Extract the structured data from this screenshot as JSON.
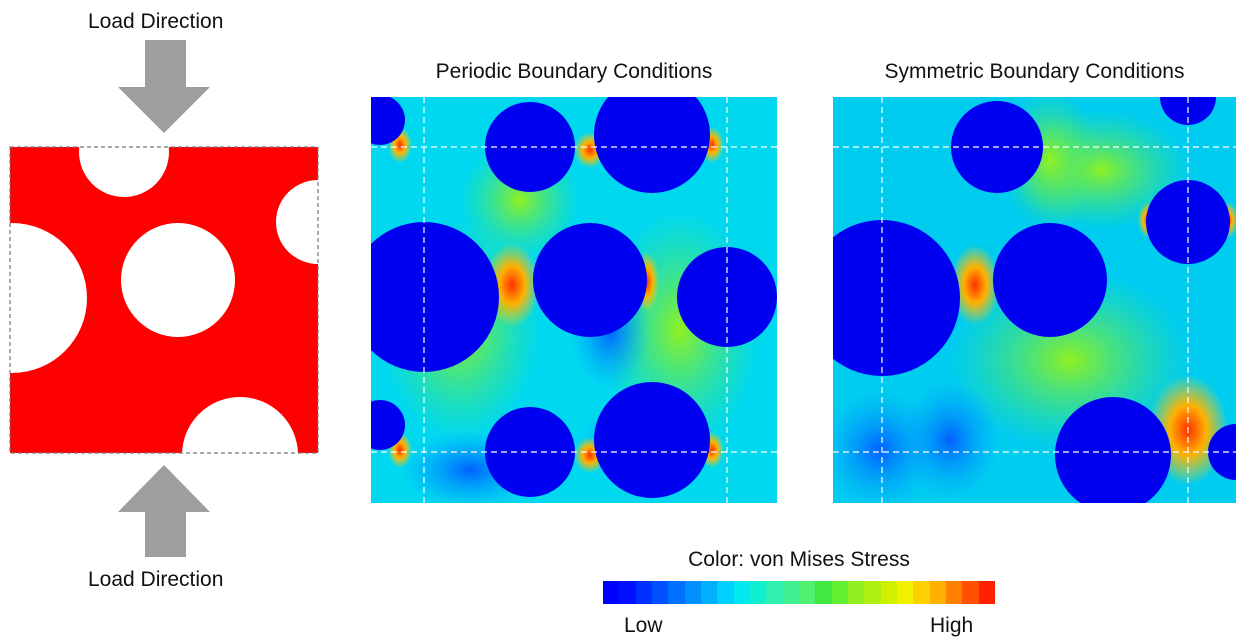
{
  "load_label_top": "Load Direction",
  "load_label_bottom": "Load Direction",
  "panel_periodic_title": "Periodic Boundary Conditions",
  "panel_symmetric_title": "Symmetric Boundary Conditions",
  "legend": {
    "title": "Color: von Mises Stress",
    "low_label": "Low",
    "high_label": "High",
    "colors": [
      "#0000ff",
      "#0010ff",
      "#0030ff",
      "#0050ff",
      "#0070ff",
      "#0090ff",
      "#00b0ff",
      "#00d0ff",
      "#00e8f0",
      "#10f0d0",
      "#30f0b0",
      "#40f090",
      "#50f070",
      "#40e840",
      "#60f030",
      "#90f020",
      "#b0f010",
      "#d0f000",
      "#f0f000",
      "#ffd000",
      "#ffb000",
      "#ff8000",
      "#ff5000",
      "#ff2000"
    ]
  },
  "colors": {
    "unit_cell_fill": "#ff0000",
    "hole_fill": "#ffffff",
    "arrow_fill": "#9e9e9e",
    "hole_stress_fill": "#0000f0",
    "dashed_line": "#ffffff"
  }
}
